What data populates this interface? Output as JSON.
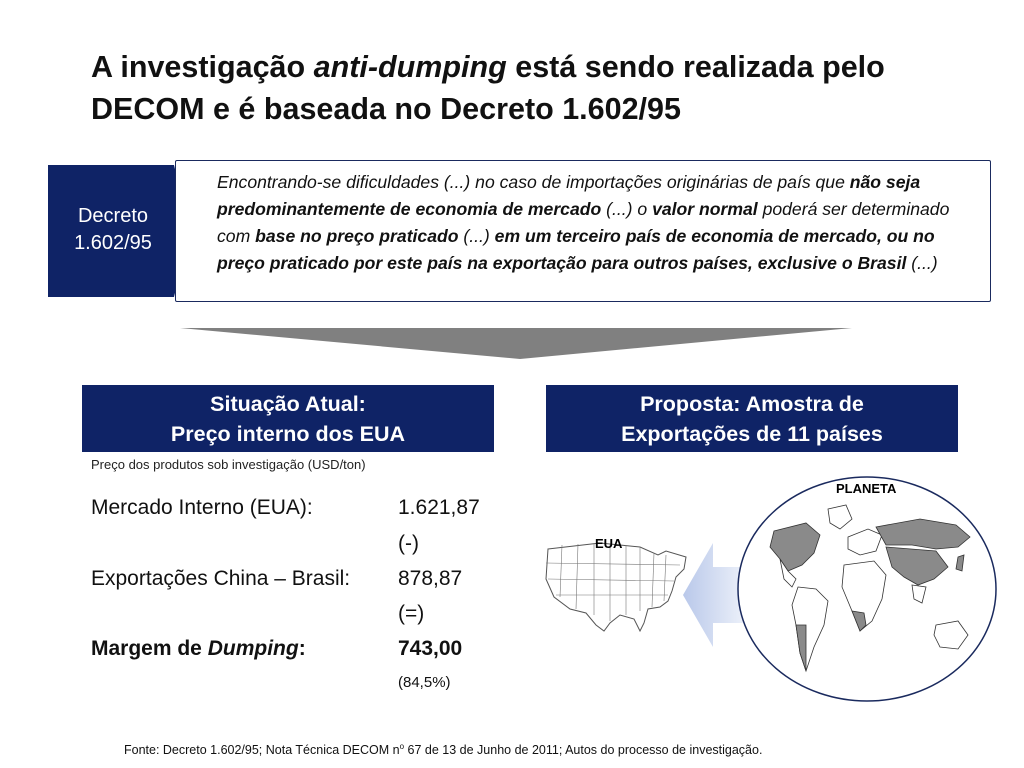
{
  "title": {
    "part1": "A investigação ",
    "italic": "anti-dumping",
    "part2": " está sendo realizada pelo DECOM e é baseada no Decreto 1.602/95"
  },
  "decree_tag": {
    "line1": "Decreto",
    "line2": "1.602/95"
  },
  "quote": {
    "t1": "Encontrando-se dificuldades (...) no caso de importações originárias de país que ",
    "b1": "não seja predominantemente de economia de mercado",
    "t2": " (...) o ",
    "b2": "valor normal",
    "t3": " poderá ser determinado com ",
    "b3": "base no preço praticado",
    "t4": " (...) ",
    "b4": "em um terceiro país de economia de mercado, ou no preço praticado por este país na exportação para outros países, exclusive o Brasil",
    "t5": " (...)"
  },
  "left_header": {
    "line1": "Situação Atual:",
    "line2": "Preço interno dos EUA"
  },
  "right_header": {
    "line1": "Proposta: Amostra de",
    "line2": "Exportações de 11 países"
  },
  "subtitle": "Preço dos produtos sob investigação (USD/ton)",
  "rows": {
    "internal": {
      "label": "Mercado Interno (EUA):",
      "value": "1.621,87"
    },
    "minus": "(-)",
    "exports": {
      "label": "Exportações China – Brasil:",
      "value": "878,87"
    },
    "equals": "(=)",
    "margin": {
      "label_prefix": "Margem de ",
      "label_italic": "Dumping",
      "label_suffix": ":",
      "value": "743,00"
    },
    "percent": "(84,5%)"
  },
  "map_labels": {
    "planet": "PLANETA",
    "usa": "EUA"
  },
  "source": {
    "before": "Fonte: Decreto 1.602/95; Nota Técnica DECOM n",
    "sup": "o",
    "after": " 67 de 13 de Junho de 2011; Autos do processo de investigação."
  },
  "colors": {
    "navy": "#0f2366",
    "border": "#1a2a5e",
    "funnel": "#808080",
    "arrow": "#c9d6ee"
  }
}
